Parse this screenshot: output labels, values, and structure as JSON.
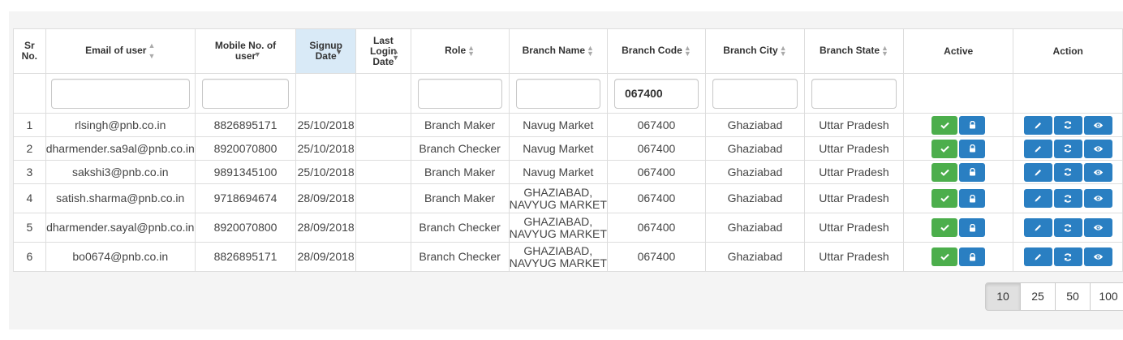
{
  "table": {
    "headers": {
      "sr": "Sr No.",
      "email": "Email of user",
      "mobile": "Mobile No. of user",
      "signup": "Signup Date",
      "last_login": "Last Login Date",
      "role": "Role",
      "branch_name": "Branch Name",
      "branch_code": "Branch Code",
      "branch_city": "Branch City",
      "branch_state": "Branch State",
      "active": "Active",
      "action": "Action"
    },
    "filters": {
      "email": "",
      "mobile": "",
      "role": "",
      "branch_name": "",
      "branch_code": "067400",
      "branch_city": "",
      "branch_state": ""
    },
    "rows": [
      {
        "sr": "1",
        "email": "rlsingh@pnb.co.in",
        "mobile": "8826895171",
        "signup": "25/10/2018",
        "last_login": "",
        "role": "Branch Maker",
        "branch_name": "Navug Market",
        "branch_code": "067400",
        "branch_city": "Ghaziabad",
        "branch_state": "Uttar Pradesh"
      },
      {
        "sr": "2",
        "email": "dharmender.sa9al@pnb.co.in",
        "mobile": "8920070800",
        "signup": "25/10/2018",
        "last_login": "",
        "role": "Branch Checker",
        "branch_name": "Navug Market",
        "branch_code": "067400",
        "branch_city": "Ghaziabad",
        "branch_state": "Uttar Pradesh"
      },
      {
        "sr": "3",
        "email": "sakshi3@pnb.co.in",
        "mobile": "9891345100",
        "signup": "25/10/2018",
        "last_login": "",
        "role": "Branch Maker",
        "branch_name": "Navug Market",
        "branch_code": "067400",
        "branch_city": "Ghaziabad",
        "branch_state": "Uttar Pradesh"
      },
      {
        "sr": "4",
        "email": "satish.sharma@pnb.co.in",
        "mobile": "9718694674",
        "signup": "28/09/2018",
        "last_login": "",
        "role": "Branch Maker",
        "branch_name": "GHAZIABAD, NAVYUG MARKET",
        "branch_code": "067400",
        "branch_city": "Ghaziabad",
        "branch_state": "Uttar Pradesh"
      },
      {
        "sr": "5",
        "email": "dharmender.sayal@pnb.co.in",
        "mobile": "8920070800",
        "signup": "28/09/2018",
        "last_login": "",
        "role": "Branch Checker",
        "branch_name": "GHAZIABAD, NAVYUG MARKET",
        "branch_code": "067400",
        "branch_city": "Ghaziabad",
        "branch_state": "Uttar Pradesh"
      },
      {
        "sr": "6",
        "email": "bo0674@pnb.co.in",
        "mobile": "8826895171",
        "signup": "28/09/2018",
        "last_login": "",
        "role": "Branch Checker",
        "branch_name": "GHAZIABAD, NAVYUG MARKET",
        "branch_code": "067400",
        "branch_city": "Ghaziabad",
        "branch_state": "Uttar Pradesh"
      }
    ]
  },
  "icons": {
    "active": [
      "check-icon",
      "lock-icon"
    ],
    "action": [
      "pencil-icon",
      "refresh-icon",
      "eye-icon"
    ]
  },
  "colors": {
    "active_button": "#4cae4c",
    "action_button": "#2a7fc2",
    "sorted_header": "#d9eaf7"
  },
  "pagination": {
    "options": [
      "10",
      "25",
      "50",
      "100"
    ],
    "selected": "10"
  }
}
